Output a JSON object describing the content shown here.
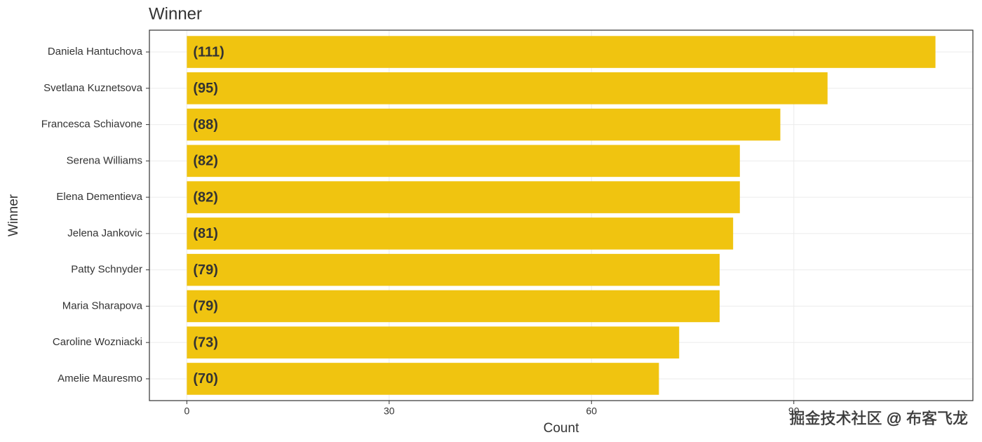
{
  "chart_data": {
    "type": "bar",
    "orientation": "horizontal",
    "title": "Winner",
    "x_label": "Count",
    "y_label": "Winner",
    "categories": [
      "Daniela Hantuchova",
      "Svetlana Kuznetsova",
      "Francesca Schiavone",
      "Serena Williams",
      "Elena Dementieva",
      "Jelena Jankovic",
      "Patty Schnyder",
      "Maria Sharapova",
      "Caroline Wozniacki",
      "Amelie Mauresmo"
    ],
    "values": [
      111,
      95,
      88,
      82,
      82,
      81,
      79,
      79,
      73,
      70
    ],
    "value_labels": [
      "(111)",
      "(95)",
      "(88)",
      "(82)",
      "(82)",
      "(81)",
      "(79)",
      "(79)",
      "(73)",
      "(70)"
    ],
    "color": "#f0c410",
    "xlim": [
      -5.55,
      116.55
    ],
    "xticks": [
      0,
      30,
      60,
      90
    ],
    "grid": true,
    "watermark": "掘金技术社区 @ 布客飞龙"
  }
}
